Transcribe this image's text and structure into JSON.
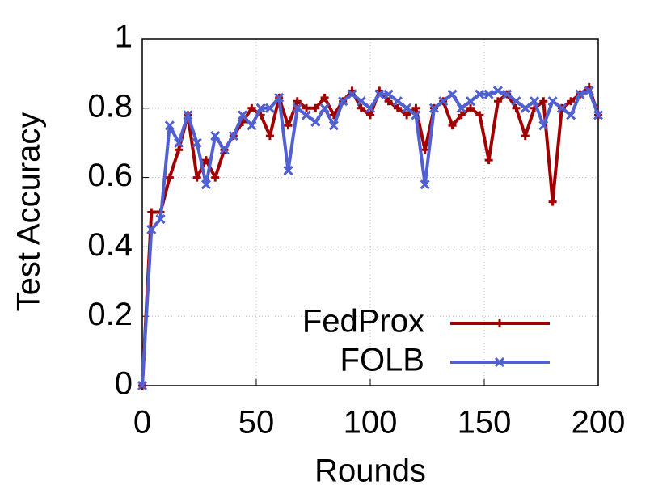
{
  "chart_data": {
    "type": "line",
    "xlabel": "Rounds",
    "ylabel": "Test Accuracy",
    "x": [
      0,
      4,
      8,
      12,
      16,
      20,
      24,
      28,
      32,
      36,
      40,
      44,
      48,
      52,
      56,
      60,
      64,
      68,
      72,
      76,
      80,
      84,
      88,
      92,
      96,
      100,
      104,
      108,
      112,
      116,
      120,
      124,
      128,
      132,
      136,
      140,
      144,
      148,
      152,
      156,
      160,
      164,
      168,
      172,
      176,
      180,
      184,
      188,
      192,
      196,
      200
    ],
    "series": [
      {
        "name": "FedProx",
        "color": "#a00000",
        "marker": "plus",
        "values": [
          0,
          0.5,
          0.5,
          0.6,
          0.68,
          0.78,
          0.6,
          0.65,
          0.6,
          0.68,
          0.72,
          0.76,
          0.8,
          0.78,
          0.72,
          0.83,
          0.75,
          0.82,
          0.8,
          0.8,
          0.83,
          0.78,
          0.82,
          0.85,
          0.8,
          0.78,
          0.85,
          0.82,
          0.8,
          0.78,
          0.8,
          0.68,
          0.8,
          0.82,
          0.75,
          0.78,
          0.8,
          0.78,
          0.65,
          0.82,
          0.84,
          0.8,
          0.72,
          0.8,
          0.82,
          0.53,
          0.8,
          0.82,
          0.84,
          0.86,
          0.78
        ]
      },
      {
        "name": "FOLB",
        "color": "#5060d0",
        "marker": "cross",
        "values": [
          0,
          0.45,
          0.48,
          0.75,
          0.7,
          0.78,
          0.7,
          0.58,
          0.72,
          0.68,
          0.72,
          0.78,
          0.75,
          0.8,
          0.8,
          0.83,
          0.62,
          0.8,
          0.78,
          0.76,
          0.8,
          0.75,
          0.82,
          0.84,
          0.82,
          0.8,
          0.84,
          0.84,
          0.82,
          0.8,
          0.78,
          0.58,
          0.8,
          0.82,
          0.84,
          0.8,
          0.82,
          0.84,
          0.84,
          0.85,
          0.84,
          0.82,
          0.8,
          0.82,
          0.75,
          0.82,
          0.8,
          0.78,
          0.84,
          0.85,
          0.78
        ]
      }
    ],
    "xlim": [
      0,
      200
    ],
    "xticks": [
      0,
      50,
      100,
      150,
      200
    ],
    "ylim": [
      0,
      1
    ],
    "yticks": [
      0,
      0.2,
      0.4,
      0.6,
      0.8,
      1
    ],
    "grid": true,
    "legend": "lower right"
  }
}
